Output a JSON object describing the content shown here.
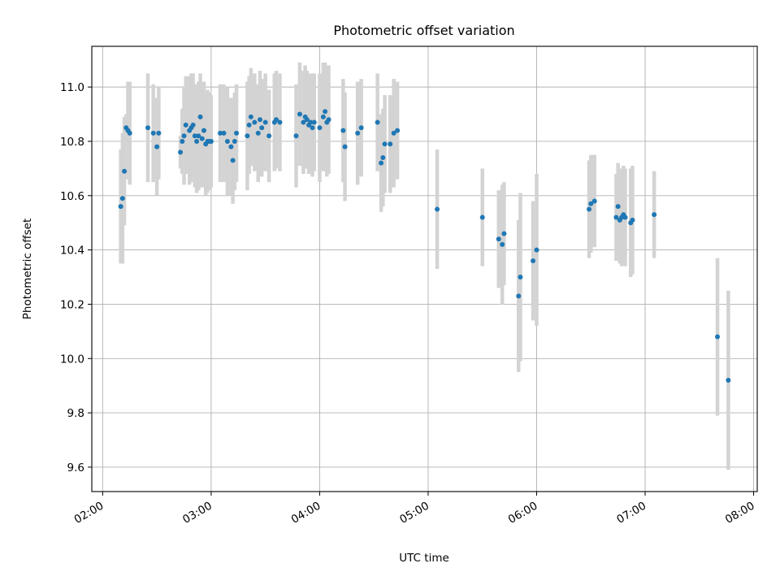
{
  "chart_data": {
    "type": "scatter",
    "title": "Photometric offset variation",
    "xlabel": "UTC time",
    "ylabel": "Photometric offset",
    "xlim": [
      "01:54",
      "08:02"
    ],
    "ylim": [
      9.51,
      11.15
    ],
    "x_ticks": [
      "02:00",
      "03:00",
      "04:00",
      "05:00",
      "06:00",
      "07:00",
      "08:00"
    ],
    "y_ticks": [
      "9.6",
      "9.8",
      "10.0",
      "10.2",
      "10.4",
      "10.6",
      "10.8",
      "11.0"
    ],
    "grid": true,
    "point_color": "#1f77b4",
    "errorbar_color": "#d3d3d3",
    "series": [
      {
        "x": [
          "02:10",
          "02:11",
          "02:12",
          "02:13",
          "02:14",
          "02:15",
          "02:25",
          "02:28",
          "02:30",
          "02:31",
          "02:43",
          "02:44",
          "02:45",
          "02:46",
          "02:48",
          "02:49",
          "02:50",
          "02:51",
          "02:52",
          "02:53",
          "02:54",
          "02:55",
          "02:56",
          "02:57",
          "02:58",
          "02:59",
          "03:00",
          "03:05",
          "03:07",
          "03:09",
          "03:11",
          "03:12",
          "03:13",
          "03:14",
          "03:20",
          "03:21",
          "03:22",
          "03:24",
          "03:26",
          "03:27",
          "03:28",
          "03:30",
          "03:32",
          "03:35",
          "03:36",
          "03:38",
          "03:47",
          "03:49",
          "03:51",
          "03:52",
          "03:53",
          "03:54",
          "03:55",
          "03:56",
          "03:57",
          "04:00",
          "04:02",
          "04:03",
          "04:04",
          "04:05",
          "04:13",
          "04:14",
          "04:21",
          "04:23",
          "04:32",
          "04:34",
          "04:35",
          "04:36",
          "04:39",
          "04:41",
          "04:43",
          "05:05",
          "05:30",
          "05:39",
          "05:41",
          "05:42",
          "05:50",
          "05:51",
          "05:58",
          "06:00",
          "06:29",
          "06:30",
          "06:32",
          "06:44",
          "06:45",
          "06:46",
          "06:47",
          "06:48",
          "06:49",
          "06:52",
          "06:53",
          "07:05",
          "07:40",
          "07:46"
        ],
        "y": [
          10.56,
          10.59,
          10.69,
          10.85,
          10.84,
          10.83,
          10.85,
          10.83,
          10.78,
          10.83,
          10.76,
          10.8,
          10.82,
          10.86,
          10.84,
          10.85,
          10.86,
          10.82,
          10.8,
          10.82,
          10.89,
          10.81,
          10.84,
          10.79,
          10.8,
          10.8,
          10.8,
          10.83,
          10.83,
          10.8,
          10.78,
          10.73,
          10.8,
          10.83,
          10.82,
          10.86,
          10.89,
          10.87,
          10.83,
          10.88,
          10.85,
          10.87,
          10.82,
          10.87,
          10.88,
          10.87,
          10.82,
          10.9,
          10.87,
          10.89,
          10.88,
          10.86,
          10.87,
          10.85,
          10.87,
          10.85,
          10.89,
          10.91,
          10.87,
          10.88,
          10.84,
          10.78,
          10.83,
          10.85,
          10.87,
          10.72,
          10.74,
          10.79,
          10.79,
          10.83,
          10.84,
          10.55,
          10.52,
          10.44,
          10.42,
          10.46,
          10.23,
          10.3,
          10.36,
          10.4,
          10.55,
          10.57,
          10.58,
          10.52,
          10.56,
          10.51,
          10.52,
          10.53,
          10.52,
          10.5,
          10.51,
          10.53,
          10.08,
          9.92
        ],
        "error": [
          0.21,
          0.24,
          0.2,
          0.05,
          0.18,
          0.19,
          0.2,
          0.18,
          0.18,
          0.17,
          0.06,
          0.12,
          0.18,
          0.18,
          0.2,
          0.2,
          0.19,
          0.19,
          0.19,
          0.2,
          0.16,
          0.18,
          0.18,
          0.19,
          0.19,
          0.18,
          0.17,
          0.18,
          0.18,
          0.2,
          0.18,
          0.16,
          0.18,
          0.18,
          0.2,
          0.18,
          0.18,
          0.18,
          0.18,
          0.18,
          0.18,
          0.18,
          0.17,
          0.18,
          0.18,
          0.18,
          0.19,
          0.19,
          0.19,
          0.19,
          0.18,
          0.18,
          0.18,
          0.18,
          0.18,
          0.2,
          0.2,
          0.18,
          0.2,
          0.2,
          0.19,
          0.2,
          0.19,
          0.18,
          0.18,
          0.18,
          0.18,
          0.18,
          0.18,
          0.2,
          0.18,
          0.22,
          0.18,
          0.18,
          0.22,
          0.19,
          0.28,
          0.31,
          0.22,
          0.28,
          0.18,
          0.18,
          0.17,
          0.16,
          0.16,
          0.16,
          0.18,
          0.18,
          0.18,
          0.2,
          0.2,
          0.16,
          0.29,
          0.33
        ]
      }
    ]
  }
}
